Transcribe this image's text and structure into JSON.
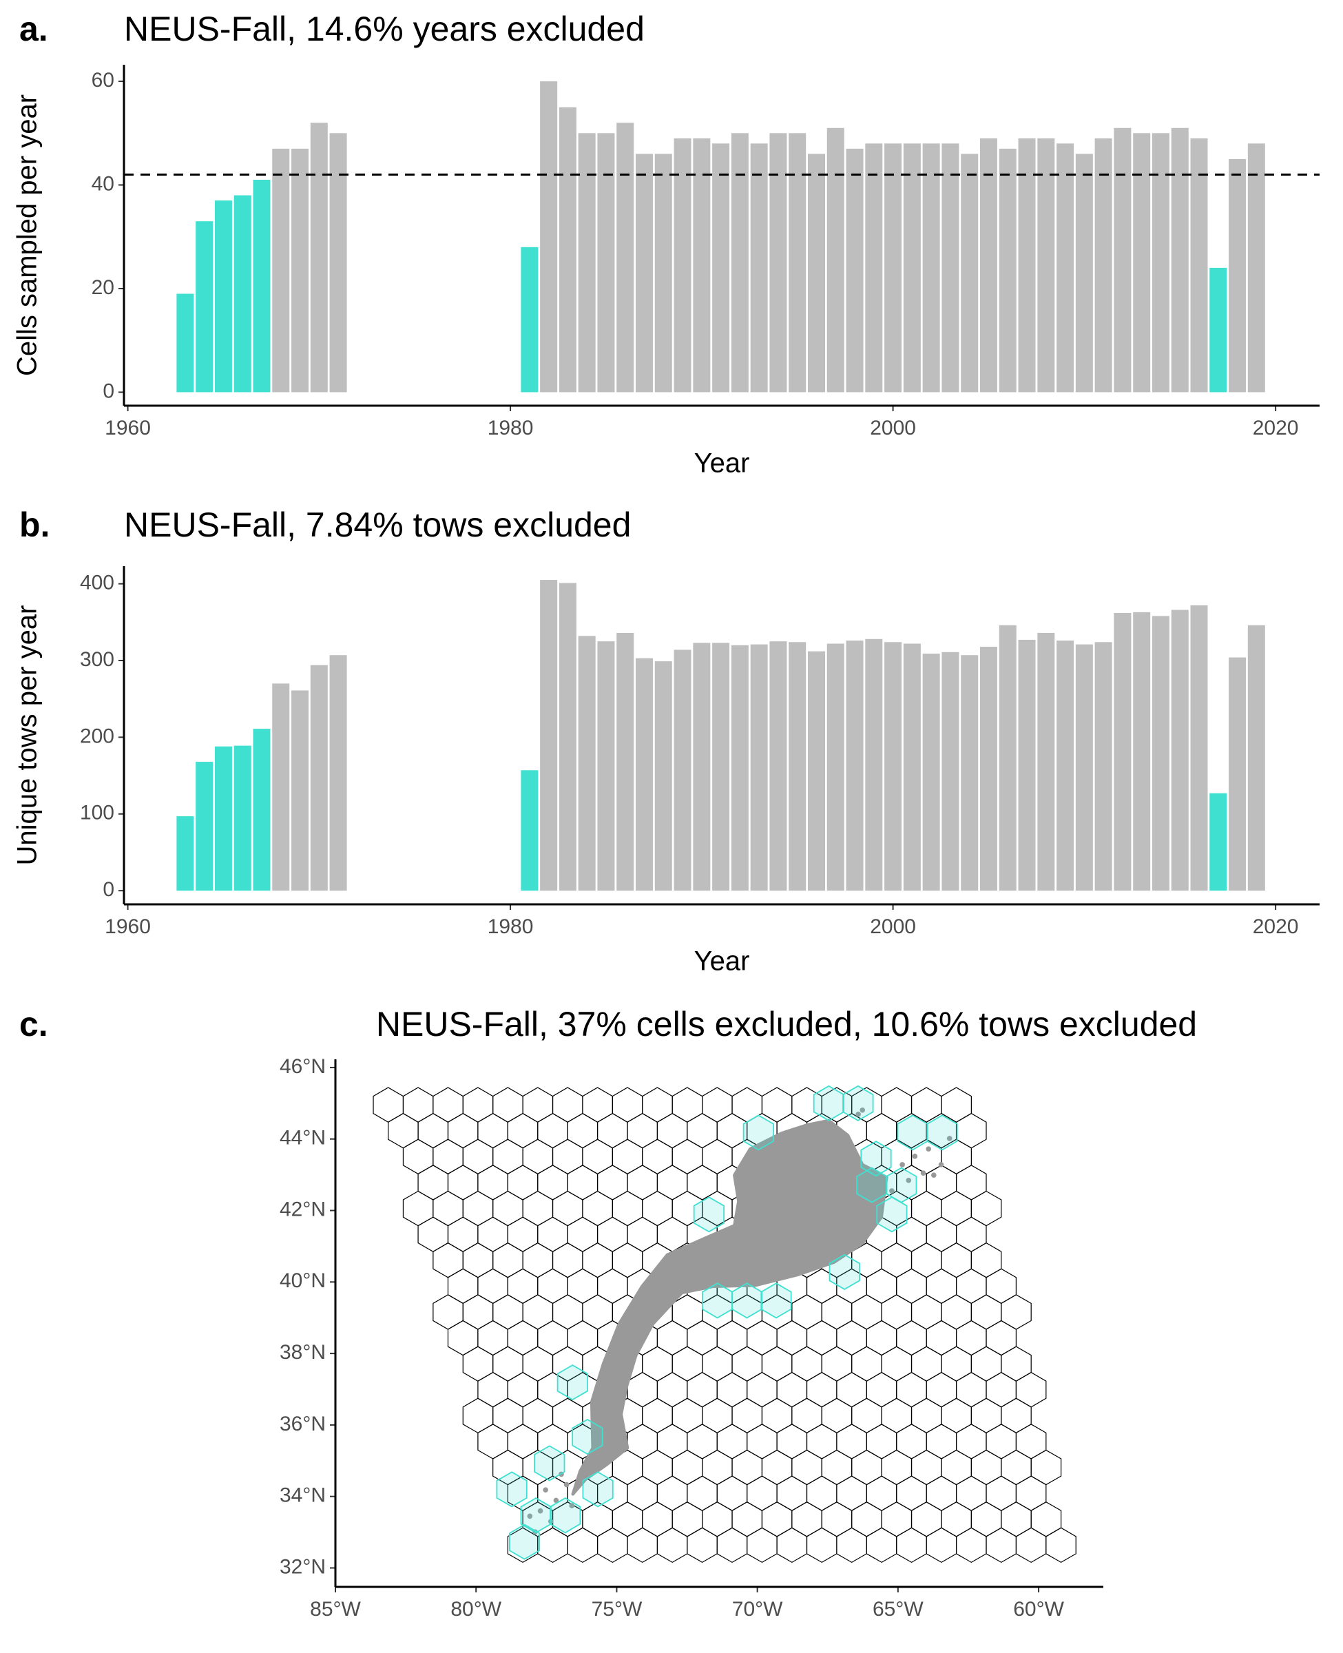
{
  "chart_data": [
    {
      "type": "bar",
      "panel_label": "a.",
      "title": "NEUS-Fall, 14.6% years excluded",
      "x_label": "Year",
      "y_label": "Cells sampled per year",
      "x": [
        1963,
        1964,
        1965,
        1966,
        1967,
        1968,
        1969,
        1970,
        1971,
        1981,
        1982,
        1983,
        1984,
        1985,
        1986,
        1987,
        1988,
        1989,
        1990,
        1991,
        1992,
        1993,
        1994,
        1995,
        1996,
        1997,
        1998,
        1999,
        2000,
        2001,
        2002,
        2003,
        2004,
        2005,
        2006,
        2007,
        2008,
        2009,
        2010,
        2011,
        2012,
        2013,
        2014,
        2015,
        2016,
        2017,
        2018,
        2019
      ],
      "values": [
        19,
        33,
        37,
        38,
        41,
        47,
        47,
        52,
        50,
        28,
        60,
        55,
        50,
        50,
        52,
        46,
        46,
        49,
        49,
        48,
        50,
        48,
        50,
        50,
        46,
        51,
        47,
        48,
        48,
        48,
        48,
        48,
        46,
        49,
        47,
        49,
        49,
        48,
        46,
        49,
        51,
        50,
        50,
        51,
        49,
        24,
        45,
        48
      ],
      "colors": [
        "#40E0D0",
        "#40E0D0",
        "#40E0D0",
        "#40E0D0",
        "#40E0D0",
        "#BEBEBE",
        "#BEBEBE",
        "#BEBEBE",
        "#BEBEBE",
        "#40E0D0",
        "#BEBEBE",
        "#BEBEBE",
        "#BEBEBE",
        "#BEBEBE",
        "#BEBEBE",
        "#BEBEBE",
        "#BEBEBE",
        "#BEBEBE",
        "#BEBEBE",
        "#BEBEBE",
        "#BEBEBE",
        "#BEBEBE",
        "#BEBEBE",
        "#BEBEBE",
        "#BEBEBE",
        "#BEBEBE",
        "#BEBEBE",
        "#BEBEBE",
        "#BEBEBE",
        "#BEBEBE",
        "#BEBEBE",
        "#BEBEBE",
        "#BEBEBE",
        "#BEBEBE",
        "#BEBEBE",
        "#BEBEBE",
        "#BEBEBE",
        "#BEBEBE",
        "#BEBEBE",
        "#BEBEBE",
        "#BEBEBE",
        "#BEBEBE",
        "#BEBEBE",
        "#BEBEBE",
        "#BEBEBE",
        "#40E0D0",
        "#BEBEBE",
        "#BEBEBE"
      ],
      "hline": 42,
      "xlim": [
        1959.8,
        2022.3
      ],
      "xticks": [
        1960,
        1980,
        2000,
        2020
      ],
      "ylim": [
        -2.6,
        63.2
      ],
      "yticks": [
        0,
        20,
        40,
        60
      ]
    },
    {
      "type": "bar",
      "panel_label": "b.",
      "title": "NEUS-Fall, 7.84% tows excluded",
      "x_label": "Year",
      "y_label": "Unique tows per year",
      "x": [
        1963,
        1964,
        1965,
        1966,
        1967,
        1968,
        1969,
        1970,
        1971,
        1981,
        1982,
        1983,
        1984,
        1985,
        1986,
        1987,
        1988,
        1989,
        1990,
        1991,
        1992,
        1993,
        1994,
        1995,
        1996,
        1997,
        1998,
        1999,
        2000,
        2001,
        2002,
        2003,
        2004,
        2005,
        2006,
        2007,
        2008,
        2009,
        2010,
        2011,
        2012,
        2013,
        2014,
        2015,
        2016,
        2017,
        2018,
        2019
      ],
      "values": [
        97,
        168,
        188,
        189,
        211,
        270,
        261,
        294,
        307,
        157,
        405,
        401,
        332,
        325,
        336,
        303,
        299,
        314,
        323,
        323,
        320,
        321,
        325,
        324,
        312,
        322,
        326,
        328,
        324,
        322,
        309,
        311,
        307,
        318,
        346,
        327,
        336,
        326,
        321,
        324,
        362,
        363,
        358,
        366,
        372,
        127,
        304,
        346
      ],
      "colors": [
        "#40E0D0",
        "#40E0D0",
        "#40E0D0",
        "#40E0D0",
        "#40E0D0",
        "#BEBEBE",
        "#BEBEBE",
        "#BEBEBE",
        "#BEBEBE",
        "#40E0D0",
        "#BEBEBE",
        "#BEBEBE",
        "#BEBEBE",
        "#BEBEBE",
        "#BEBEBE",
        "#BEBEBE",
        "#BEBEBE",
        "#BEBEBE",
        "#BEBEBE",
        "#BEBEBE",
        "#BEBEBE",
        "#BEBEBE",
        "#BEBEBE",
        "#BEBEBE",
        "#BEBEBE",
        "#BEBEBE",
        "#BEBEBE",
        "#BEBEBE",
        "#BEBEBE",
        "#BEBEBE",
        "#BEBEBE",
        "#BEBEBE",
        "#BEBEBE",
        "#BEBEBE",
        "#BEBEBE",
        "#BEBEBE",
        "#BEBEBE",
        "#BEBEBE",
        "#BEBEBE",
        "#BEBEBE",
        "#BEBEBE",
        "#BEBEBE",
        "#BEBEBE",
        "#BEBEBE",
        "#BEBEBE",
        "#40E0D0",
        "#BEBEBE",
        "#BEBEBE"
      ],
      "xlim": [
        1959.8,
        2022.3
      ],
      "xticks": [
        1960,
        1980,
        2000,
        2020
      ],
      "ylim": [
        -17.8,
        423
      ],
      "yticks": [
        0,
        100,
        200,
        300,
        400
      ]
    },
    {
      "type": "map",
      "panel_label": "c.",
      "title": "NEUS-Fall, 37% cells excluded, 10.6% tows excluded",
      "excluded_color": "#40E0D0",
      "excluded_cells": {
        "lon": [
          -67.46,
          -66.42,
          -69.96,
          -64.48,
          -63.43,
          -65.78,
          -65.93,
          -64.88,
          -71.72,
          -65.22,
          -66.9,
          -71.42,
          -70.37,
          -69.33,
          -76.57,
          -76.04,
          -77.39,
          -78.73,
          -75.67,
          -77.87,
          -76.83,
          -78.28
        ],
        "lat": [
          45.0,
          45.0,
          44.18,
          44.18,
          44.18,
          43.45,
          42.71,
          42.71,
          41.89,
          41.89,
          40.28,
          39.48,
          39.48,
          39.48,
          37.19,
          35.67,
          34.93,
          34.2,
          34.2,
          33.47,
          33.47,
          32.73
        ]
      },
      "xlim": [
        -85,
        -57.7
      ],
      "xticks": [
        {
          "value": -85,
          "label": "85°W"
        },
        {
          "value": -80,
          "label": "80°W"
        },
        {
          "value": -75,
          "label": "75°W"
        },
        {
          "value": -70,
          "label": "70°W"
        },
        {
          "value": -65,
          "label": "65°W"
        },
        {
          "value": -60,
          "label": "60°W"
        }
      ],
      "ylim": [
        31.47,
        46.23
      ],
      "yticks": [
        {
          "value": 32,
          "label": "32°N"
        },
        {
          "value": 34,
          "label": "34°N"
        },
        {
          "value": 36,
          "label": "36°N"
        },
        {
          "value": 38,
          "label": "38°N"
        },
        {
          "value": 40,
          "label": "40°N"
        },
        {
          "value": 42,
          "label": "42°N"
        },
        {
          "value": 44,
          "label": "44°N"
        },
        {
          "value": 46,
          "label": "46°N"
        }
      ]
    }
  ]
}
